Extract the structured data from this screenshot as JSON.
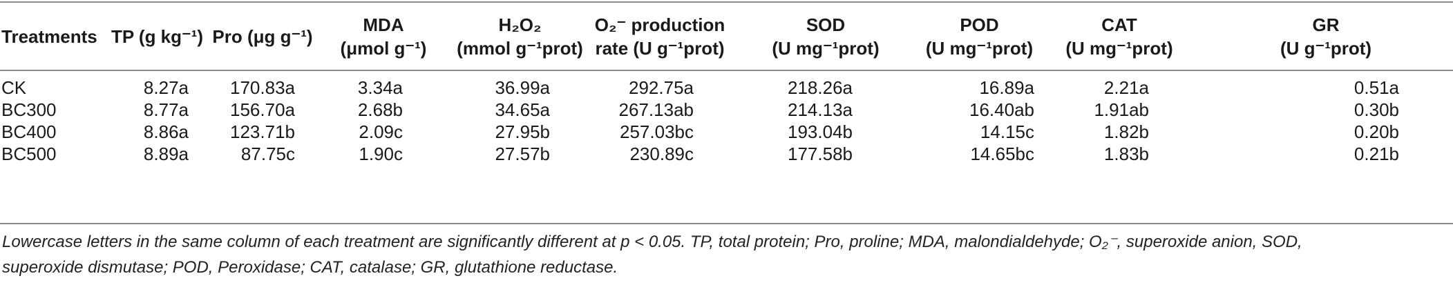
{
  "table": {
    "headers": [
      {
        "l1": "",
        "l2": "Treatments"
      },
      {
        "l1": "",
        "l2": "TP (g kg⁻¹)"
      },
      {
        "l1": "",
        "l2": "Pro (μg g⁻¹)"
      },
      {
        "l1": "MDA",
        "l2": "(μmol g⁻¹)"
      },
      {
        "l1": "H₂O₂",
        "l2": "(mmol g⁻¹prot)"
      },
      {
        "l1": "O₂⁻ production",
        "l2": "rate (U g⁻¹prot)"
      },
      {
        "l1": "SOD",
        "l2": "(U mg⁻¹prot)"
      },
      {
        "l1": "POD",
        "l2": "(U mg⁻¹prot)"
      },
      {
        "l1": "CAT",
        "l2": "(U mg⁻¹prot)"
      },
      {
        "l1": "GR",
        "l2": "(U g⁻¹prot)"
      }
    ],
    "rows": [
      [
        "CK",
        "8.27a",
        "170.83a",
        "3.34a",
        "36.99a",
        "292.75a",
        "218.26a",
        "16.89a",
        "2.21a",
        "0.51a"
      ],
      [
        "BC300",
        "8.77a",
        "156.70a",
        "2.68b",
        "34.65a",
        "267.13ab",
        "214.13a",
        "16.40ab",
        "1.91ab",
        "0.30b"
      ],
      [
        "BC400",
        "8.86a",
        "123.71b",
        "2.09c",
        "27.95b",
        "257.03bc",
        "193.04b",
        "14.15c",
        "1.82b",
        "0.20b"
      ],
      [
        "BC500",
        "8.89a",
        "87.75c",
        "1.90c",
        "27.57b",
        "230.89c",
        "177.58b",
        "14.65bc",
        "1.83b",
        "0.21b"
      ]
    ]
  },
  "footnote": {
    "line1": "Lowercase letters in the same column of each treatment are significantly different at p < 0.05. TP, total protein; Pro, proline; MDA, malondialdehyde; O₂⁻, superoxide anion, SOD,",
    "line2": "superoxide dismutase; POD, Peroxidase; CAT, catalase; GR, glutathione reductase."
  }
}
